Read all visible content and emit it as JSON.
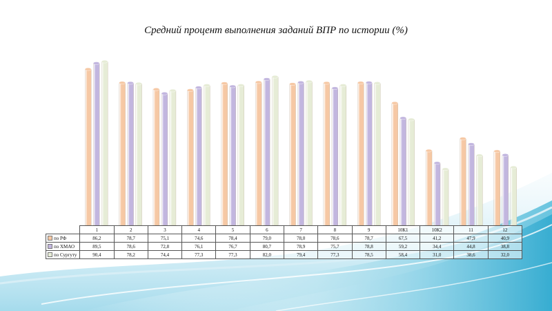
{
  "chart_data": {
    "type": "bar",
    "title": "Средний процент выполнения заданий ВПР по истории (%)",
    "categories": [
      "1",
      "2",
      "3",
      "4",
      "5",
      "6",
      "7",
      "8",
      "9",
      "10К1",
      "10К2",
      "11",
      "12"
    ],
    "series": [
      {
        "name": "по РФ",
        "color": "#f6c8a4",
        "values": [
          "86,2",
          "78,7",
          "75,1",
          "74,6",
          "78,4",
          "79,0",
          "78,0",
          "78,6",
          "78,7",
          "67,5",
          "41,2",
          "47,9",
          "40,9"
        ]
      },
      {
        "name": "по ХМАО",
        "color": "#c2b6df",
        "values": [
          "89,5",
          "78,6",
          "72,8",
          "76,1",
          "76,7",
          "80,7",
          "78,9",
          "75,7",
          "78,8",
          "59,2",
          "34,4",
          "44,8",
          "38,8"
        ]
      },
      {
        "name": "по Сургуту",
        "color": "#e6ecd6",
        "values": [
          "90,4",
          "78,2",
          "74,4",
          "77,3",
          "77,3",
          "82,0",
          "79,4",
          "77,3",
          "78,5",
          "58,4",
          "31,0",
          "38,6",
          "32,0"
        ]
      }
    ],
    "ylim": [
      0,
      100
    ],
    "grid": false,
    "legend": "data-table"
  }
}
